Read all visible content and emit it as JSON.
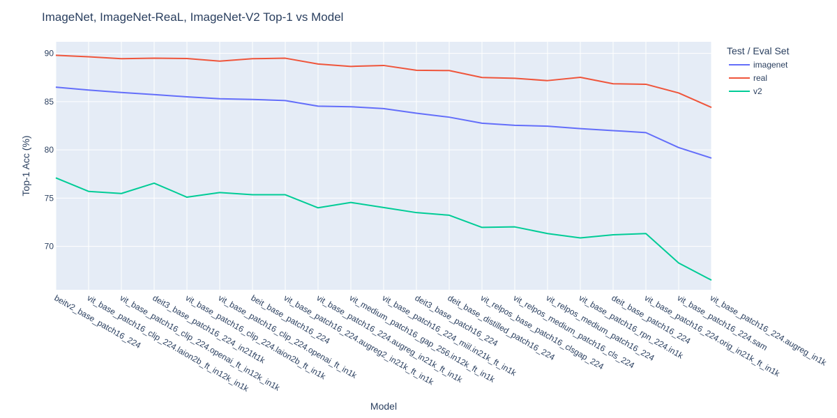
{
  "chart_data": {
    "type": "line",
    "title": "ImageNet, ImageNet-ReaL, ImageNet-V2 Top-1 vs Model",
    "xlabel": "Model",
    "ylabel": "Top-1 Acc (%)",
    "ylim": [
      65.5,
      91.2
    ],
    "yticks": [
      70,
      75,
      80,
      85,
      90
    ],
    "grid": true,
    "legend_title": "Test / Eval Set",
    "legend_position": "top-right",
    "categories": [
      "beitv2_base_patch16_224",
      "vit_base_patch16_clip_224.laion2b_ft_in12k_in1k",
      "vit_base_patch16_clip_224.openai_ft_in12k_in1k",
      "deit3_base_patch16_224_in21ft1k",
      "vit_base_patch16_clip_224.laion2b_ft_in1k",
      "vit_base_patch16_clip_224.openai_ft_in1k",
      "beit_base_patch16_224",
      "vit_base_patch16_224.augreg2_in21k_ft_in1k",
      "vit_base_patch16_224.augreg_in21k_ft_in1k",
      "vit_medium_patch16_gap_256.in12k_ft_in1k",
      "vit_base_patch16_224_miil.in21k_ft_in1k",
      "deit3_base_patch16_224",
      "deit_base_distilled_patch16_224",
      "vit_relpos_base_patch16_clsgap_224",
      "vit_relpos_medium_patch16_cls_224",
      "vit_relpos_medium_patch16_224",
      "vit_base_patch16_rpn_224.in1k",
      "deit_base_patch16_224",
      "vit_base_patch16_224.orig_in21k_ft_in1k",
      "vit_base_patch16_224.sam",
      "vit_base_patch16_224.augreg_in1k"
    ],
    "series": [
      {
        "name": "imagenet",
        "color": "#636efa",
        "values": [
          86.5,
          86.2,
          85.95,
          85.73,
          85.5,
          85.3,
          85.23,
          85.11,
          84.53,
          84.47,
          84.28,
          83.8,
          83.39,
          82.76,
          82.55,
          82.46,
          82.2,
          82.0,
          81.79,
          80.24,
          79.15
        ]
      },
      {
        "name": "real",
        "color": "#ef553b",
        "values": [
          89.8,
          89.65,
          89.45,
          89.5,
          89.47,
          89.2,
          89.45,
          89.5,
          88.9,
          88.65,
          88.75,
          88.25,
          88.22,
          87.5,
          87.42,
          87.18,
          87.52,
          86.85,
          86.8,
          85.9,
          84.4
        ]
      },
      {
        "name": "v2",
        "color": "#00cc96",
        "values": [
          77.1,
          75.7,
          75.48,
          76.55,
          75.1,
          75.58,
          75.35,
          75.35,
          74.0,
          74.55,
          74.03,
          73.5,
          73.23,
          71.97,
          72.02,
          71.33,
          70.88,
          71.2,
          71.33,
          68.28,
          66.5
        ]
      }
    ]
  }
}
